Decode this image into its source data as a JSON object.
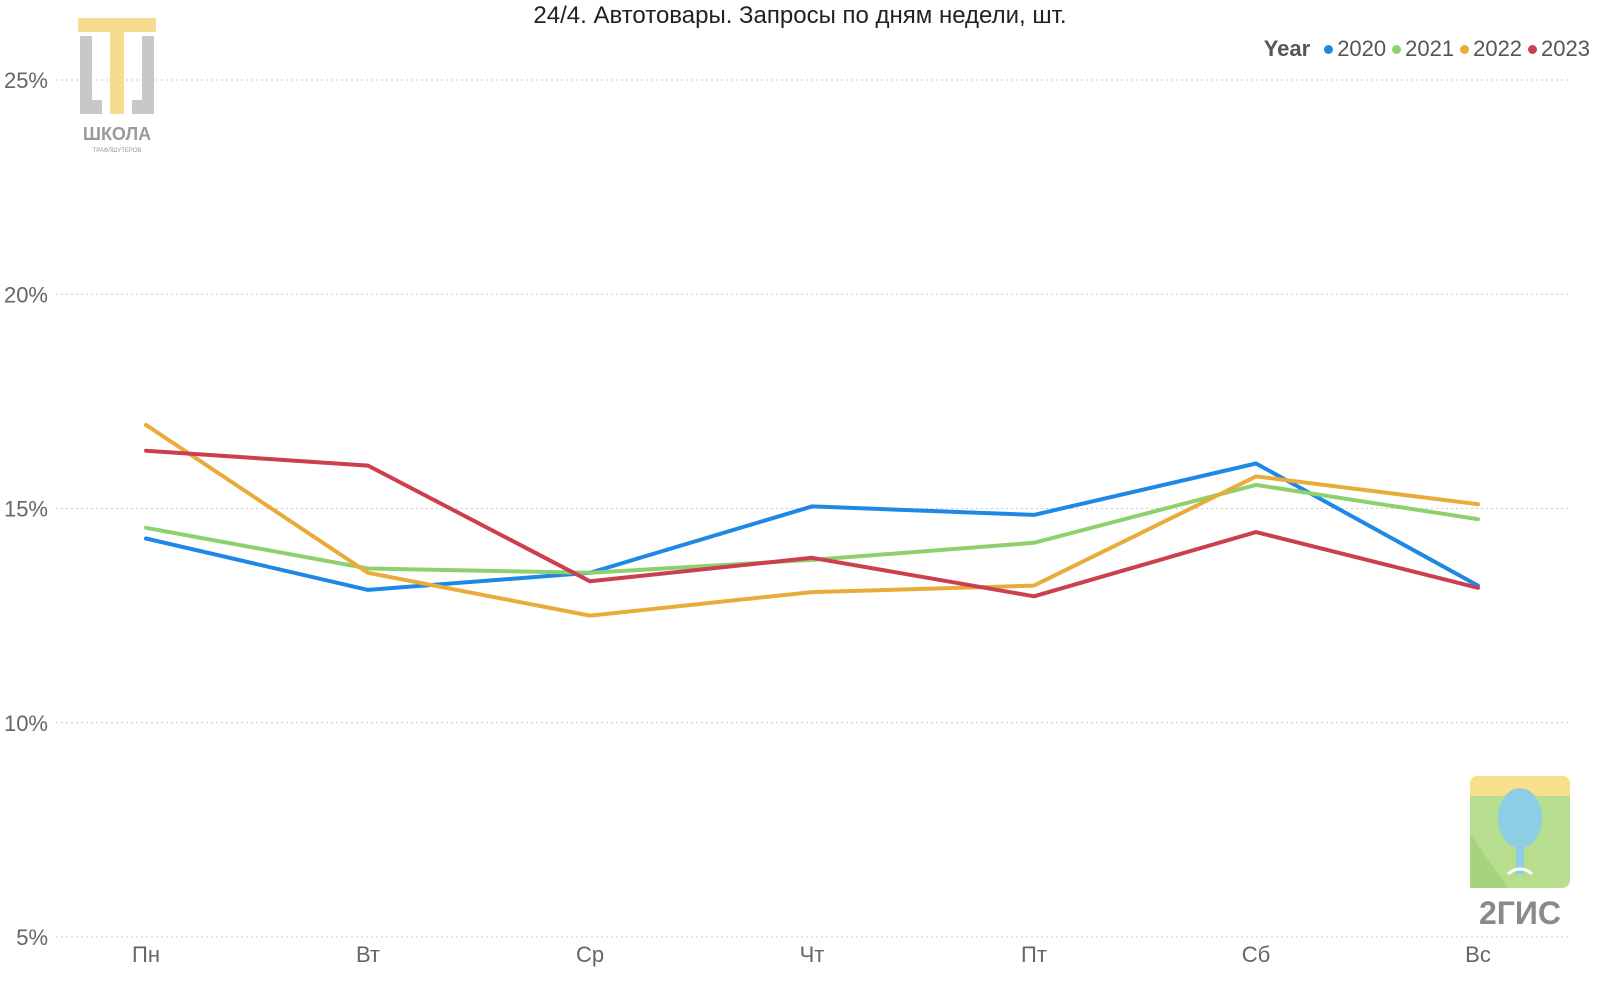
{
  "chart_data": {
    "type": "line",
    "title": "24/4. Автотовары. Запросы по дням недели, шт.",
    "categories": [
      "Пн",
      "Вт",
      "Ср",
      "Чт",
      "Пт",
      "Сб",
      "Вс"
    ],
    "ylim": [
      5,
      25
    ],
    "yticks": [
      5,
      10,
      15,
      20,
      25
    ],
    "ytick_labels": [
      "5%",
      "10%",
      "15%",
      "20%",
      "25%"
    ],
    "grid": true,
    "legend": {
      "title": "Year",
      "placement": "top-right"
    },
    "series": [
      {
        "name": "2020",
        "color": "#1e88e5",
        "values": [
          14.3,
          13.1,
          13.5,
          15.05,
          14.85,
          16.05,
          13.2
        ]
      },
      {
        "name": "2021",
        "color": "#8fd06e",
        "values": [
          14.55,
          13.6,
          13.5,
          13.8,
          14.2,
          15.55,
          14.75
        ]
      },
      {
        "name": "2022",
        "color": "#e8ac3a",
        "values": [
          16.95,
          13.5,
          12.5,
          13.05,
          13.2,
          15.75,
          15.1
        ]
      },
      {
        "name": "2023",
        "color": "#cc3f4f",
        "values": [
          16.35,
          16.0,
          13.3,
          13.85,
          12.95,
          14.45,
          13.15
        ]
      }
    ]
  },
  "logos": {
    "school": {
      "icon": "school-logo",
      "text": "ШКОЛА",
      "subtext": "ТРАФЛШУТЕРОВ"
    },
    "gis": {
      "icon": "2gis-logo",
      "text": "2ГИС"
    }
  }
}
